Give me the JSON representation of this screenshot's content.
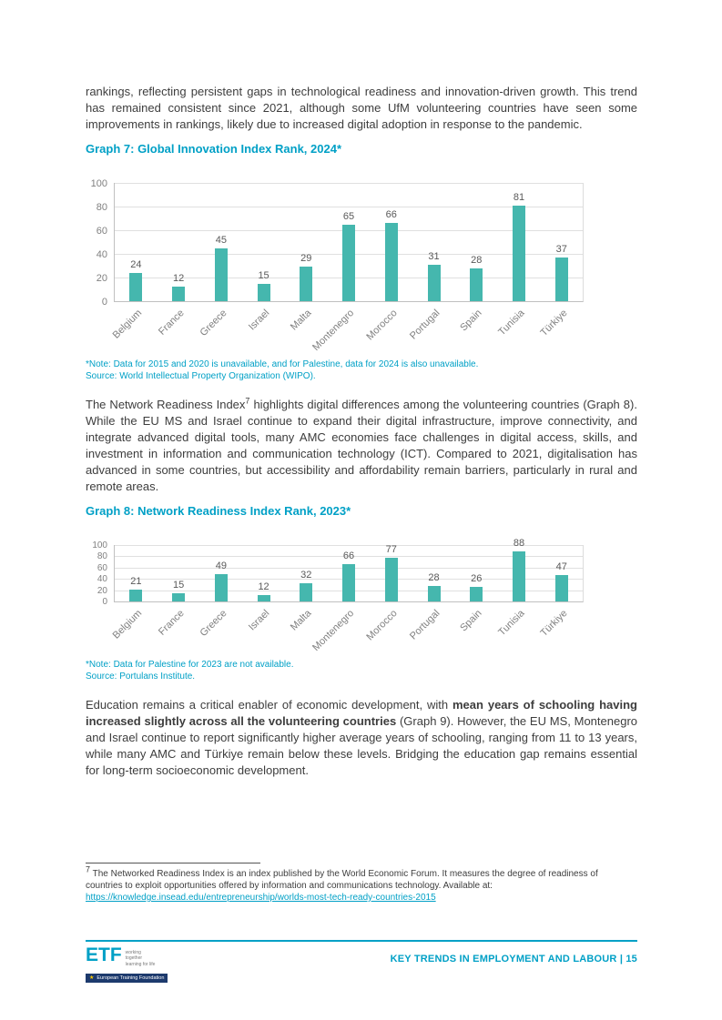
{
  "colors": {
    "accent": "#00A0C6",
    "bar": "#45B7AE"
  },
  "icons": {
    "eu_star": "★"
  },
  "intro": {
    "text": "rankings, reflecting persistent gaps in technological readiness and innovation-driven growth. This trend has remained consistent since 2021, although some UfM volunteering countries have seen some improvements in rankings, likely due to increased digital adoption in response to the pandemic."
  },
  "chart_data": [
    {
      "id": "graph7",
      "type": "bar",
      "title": "Graph 7: Global Innovation Index Rank, 2024*",
      "categories": [
        "Belgium",
        "France",
        "Greece",
        "Israel",
        "Malta",
        "Montenegro",
        "Morocco",
        "Portugal",
        "Spain",
        "Tunisia",
        "Türkiye"
      ],
      "values": [
        24,
        12,
        45,
        15,
        29,
        65,
        66,
        31,
        28,
        81,
        37
      ],
      "ylim": [
        0,
        100
      ],
      "yticks": [
        0,
        20,
        40,
        60,
        80,
        100
      ],
      "bar_color": "#45B7AE",
      "grid": true,
      "legend": false,
      "note": "*Note: Data for 2015 and 2020 is unavailable, and for Palestine, data for 2024 is also unavailable.",
      "source": "Source: World Intellectual Property Organization (WIPO)."
    },
    {
      "id": "graph8",
      "type": "bar",
      "title": "Graph 8: Network Readiness Index Rank, 2023*",
      "categories": [
        "Belgium",
        "France",
        "Greece",
        "Israel",
        "Malta",
        "Montenegro",
        "Morocco",
        "Portugal",
        "Spain",
        "Tunisia",
        "Türkiye"
      ],
      "values": [
        21,
        15,
        49,
        12,
        32,
        66,
        77,
        28,
        26,
        88,
        47
      ],
      "ylim": [
        0,
        100
      ],
      "yticks": [
        0,
        20,
        40,
        60,
        80,
        100
      ],
      "bar_color": "#45B7AE",
      "grid": true,
      "legend": false,
      "note": "*Note: Data for Palestine for 2023 are not available.",
      "source": "Source: Portulans Institute."
    }
  ],
  "nri": {
    "before_sup": "The Network Readiness Index",
    "footnote_ref": "7",
    "after_sup": " highlights digital differences among the volunteering countries (Graph 8). While the EU MS and Israel continue to expand their digital infrastructure, improve connectivity, and integrate advanced digital tools, many AMC economies face challenges in digital access, skills, and investment in information and communication technology (ICT). Compared to 2021, digitalisation has advanced in some countries, but accessibility and affordability remain barriers, particularly in rural and remote areas."
  },
  "edu": {
    "before_bold": "Education remains a critical enabler of economic development, with ",
    "bold": "mean years of schooling having increased slightly across all the volunteering countries",
    "after_bold": " (Graph 9). However, the EU MS, Montenegro and Israel continue to report significantly higher average years of schooling, ranging from 11 to 13 years, while many AMC and Türkiye remain below these levels. Bridging the education gap remains essential for long-term socioeconomic development."
  },
  "footnote": {
    "marker": "7",
    "text": " The Networked Readiness Index is an index published by the World Economic Forum. It measures the degree of readiness of countries to exploit opportunities offered by information and communications technology. Available at:",
    "link": "https://knowledge.insead.edu/entrepreneurship/worlds-most-tech-ready-countries-2015"
  },
  "footer": {
    "page_label": "KEY TRENDS IN EMPLOYMENT AND LABOUR | 15",
    "logo_text": "ETF",
    "logo_tagline": "working together learning for life",
    "logo_subtext": "European Training Foundation"
  }
}
